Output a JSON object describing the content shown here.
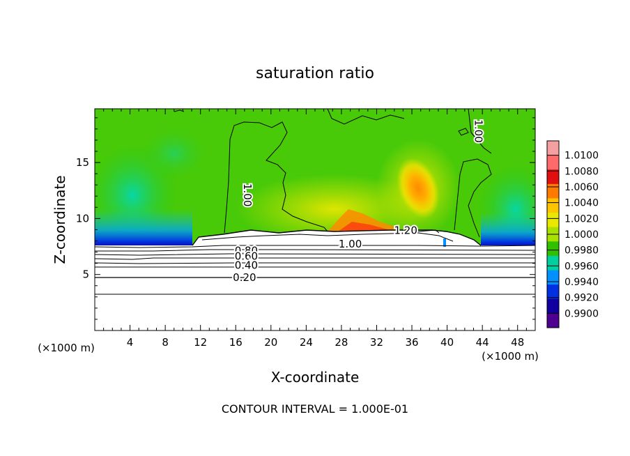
{
  "chart_data": {
    "type": "heatmap",
    "title": "saturation ratio",
    "xlabel": "X-coordinate",
    "ylabel": "Z-coordinate",
    "x_unit": "(×1000 m)",
    "y_unit": "(×1000 m)",
    "xlim": [
      0,
      50
    ],
    "ylim": [
      0,
      19.8
    ],
    "x_ticks": [
      4,
      8,
      12,
      16,
      20,
      24,
      28,
      32,
      36,
      40,
      44,
      48
    ],
    "y_ticks": [
      5,
      10,
      15
    ],
    "footer": "CONTOUR INTERVAL = 1.000E-01",
    "colorbar": {
      "levels": [
        "1.0100",
        "1.0080",
        "1.0060",
        "1.0040",
        "1.0020",
        "1.0000",
        "0.9980",
        "0.9960",
        "0.9940",
        "0.9920",
        "0.9900"
      ],
      "colors": [
        "#f4a0a0",
        "#ff6a6a",
        "#e01010",
        "#ff7a00",
        "#ffc400",
        "#e8e800",
        "#a8e000",
        "#30c000",
        "#00d0a0",
        "#0090ff",
        "#0030e0",
        "#1000a0",
        "#500090"
      ]
    },
    "contour_labels": [
      {
        "text": "1.00",
        "x": 17.3,
        "z": 12.1,
        "rotate": 90
      },
      {
        "text": "1.00",
        "x": 43.5,
        "z": 17.8,
        "rotate": 90
      },
      {
        "text": "1.20",
        "x": 35.3,
        "z": 8.9,
        "rotate": 0
      },
      {
        "text": "1.00",
        "x": 29.0,
        "z": 7.7,
        "rotate": 0
      },
      {
        "text": "0.80",
        "x": 17.2,
        "z": 7.1,
        "rotate": 0
      },
      {
        "text": "0.60",
        "x": 17.2,
        "z": 6.6,
        "rotate": 0
      },
      {
        "text": "0.40",
        "x": 17.2,
        "z": 5.8,
        "rotate": 0
      },
      {
        "text": "0.20",
        "x": 17.0,
        "z": 4.7,
        "rotate": 0
      }
    ]
  }
}
